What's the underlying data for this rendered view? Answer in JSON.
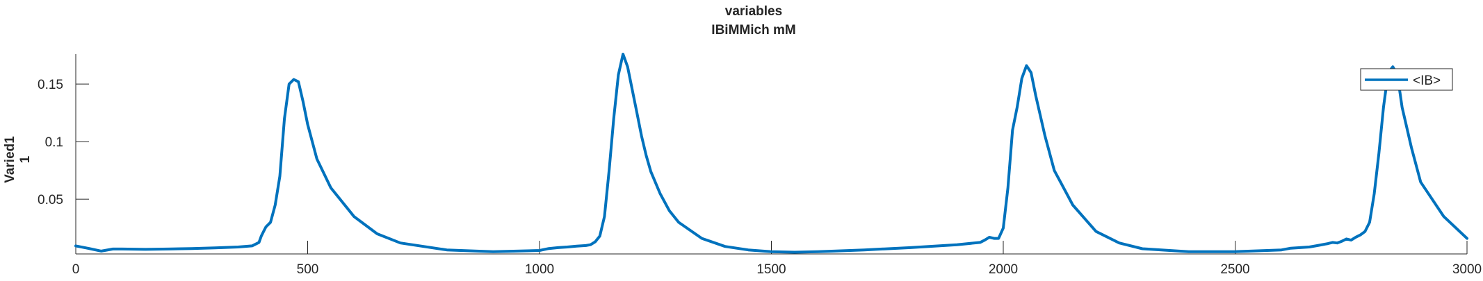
{
  "chart_data": {
    "type": "line",
    "title": [
      "variables",
      "IBiMMich mM"
    ],
    "xlabel": "",
    "ylabel": [
      "Varied1",
      "1"
    ],
    "xlim": [
      0,
      3000
    ],
    "ylim": [
      0.0025,
      0.176
    ],
    "xticks": [
      0,
      500,
      1000,
      1500,
      2000,
      2500,
      3000
    ],
    "xtick_labels": [
      "0",
      "500",
      "1000",
      "1500",
      "2000",
      "2500",
      "3000"
    ],
    "yticks": [
      0.05,
      0.1,
      0.15
    ],
    "ytick_labels": [
      "0.05",
      "0.1",
      "0.15"
    ],
    "grid": false,
    "legend_position": "top-right",
    "series": [
      {
        "name": "<IB>",
        "color": "#0072BD",
        "x": [
          0,
          25,
          55,
          80,
          100,
          150,
          200,
          250,
          300,
          350,
          380,
          395,
          400,
          405,
          410,
          420,
          430,
          440,
          450,
          460,
          470,
          480,
          490,
          500,
          520,
          550,
          600,
          650,
          700,
          800,
          900,
          1000,
          1020,
          1040,
          1060,
          1080,
          1100,
          1110,
          1120,
          1130,
          1140,
          1150,
          1160,
          1170,
          1180,
          1190,
          1200,
          1210,
          1220,
          1230,
          1240,
          1260,
          1280,
          1300,
          1350,
          1400,
          1450,
          1500,
          1550,
          1600,
          1700,
          1800,
          1900,
          1950,
          1960,
          1970,
          1980,
          1990,
          2000,
          2010,
          2020,
          2030,
          2040,
          2050,
          2060,
          2070,
          2090,
          2110,
          2150,
          2200,
          2250,
          2300,
          2400,
          2500,
          2600,
          2620,
          2660,
          2680,
          2700,
          2710,
          2720,
          2730,
          2740,
          2750,
          2760,
          2770,
          2780,
          2790,
          2800,
          2810,
          2820,
          2830,
          2840,
          2850,
          2860,
          2880,
          2900,
          2950,
          3000
        ],
        "values": [
          0.0095,
          0.0075,
          0.005,
          0.0068,
          0.0068,
          0.0065,
          0.0068,
          0.0072,
          0.0078,
          0.0085,
          0.0095,
          0.0125,
          0.018,
          0.022,
          0.026,
          0.03,
          0.045,
          0.07,
          0.12,
          0.15,
          0.154,
          0.152,
          0.135,
          0.115,
          0.085,
          0.06,
          0.035,
          0.02,
          0.012,
          0.006,
          0.0045,
          0.0055,
          0.0072,
          0.008,
          0.0085,
          0.0093,
          0.0098,
          0.0105,
          0.013,
          0.018,
          0.035,
          0.075,
          0.12,
          0.158,
          0.176,
          0.165,
          0.145,
          0.125,
          0.105,
          0.088,
          0.074,
          0.055,
          0.04,
          0.03,
          0.016,
          0.009,
          0.006,
          0.0045,
          0.004,
          0.0045,
          0.006,
          0.008,
          0.0105,
          0.0125,
          0.0145,
          0.017,
          0.016,
          0.016,
          0.025,
          0.06,
          0.11,
          0.13,
          0.155,
          0.166,
          0.16,
          0.14,
          0.105,
          0.075,
          0.045,
          0.022,
          0.012,
          0.007,
          0.0045,
          0.0045,
          0.006,
          0.0075,
          0.0085,
          0.01,
          0.0115,
          0.0125,
          0.012,
          0.0135,
          0.0155,
          0.0145,
          0.017,
          0.019,
          0.022,
          0.03,
          0.055,
          0.09,
          0.13,
          0.16,
          0.165,
          0.158,
          0.13,
          0.095,
          0.065,
          0.035,
          0.016
        ]
      }
    ]
  }
}
